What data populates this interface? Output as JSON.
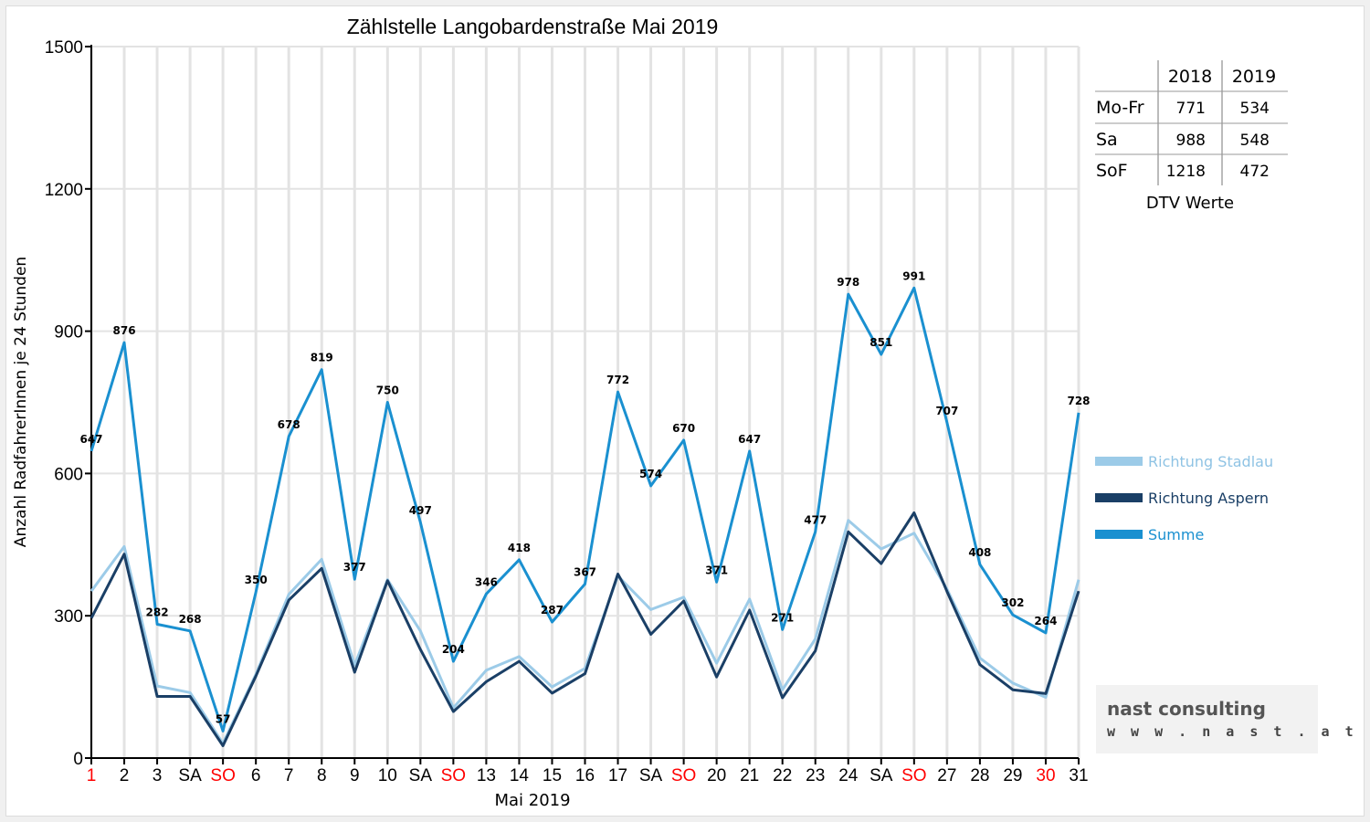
{
  "chart_data": {
    "type": "line",
    "title": "Zählstelle Langobardenstraße Mai 2019",
    "xlabel": "Mai 2019",
    "ylabel": "Anzahl RadfahrerInnen je 24 Stunden",
    "ylim": [
      0,
      1500
    ],
    "yticks": [
      0,
      300,
      600,
      900,
      1200,
      1500
    ],
    "grid": true,
    "legend_position": "right",
    "categories": [
      "1",
      "2",
      "3",
      "SA",
      "SO",
      "6",
      "7",
      "8",
      "9",
      "10",
      "SA",
      "SO",
      "13",
      "14",
      "15",
      "16",
      "17",
      "SA",
      "SO",
      "20",
      "21",
      "22",
      "23",
      "24",
      "SA",
      "SO",
      "27",
      "28",
      "29",
      "30",
      "31"
    ],
    "red_categories": [
      0,
      4,
      11,
      18,
      25,
      29
    ],
    "series": [
      {
        "name": "Richtung Stadlau",
        "color": "#9ccbe8",
        "values": [
          352,
          446,
          152,
          138,
          31,
          177,
          345,
          419,
          196,
          376,
          268,
          106,
          185,
          214,
          150,
          189,
          384,
          313,
          339,
          200,
          335,
          144,
          251,
          501,
          441,
          474,
          356,
          211,
          158,
          128,
          376
        ]
      },
      {
        "name": "Richtung Aspern",
        "color": "#1a3f66",
        "values": [
          295,
          430,
          130,
          130,
          26,
          173,
          333,
          400,
          181,
          374,
          229,
          98,
          161,
          204,
          137,
          178,
          388,
          261,
          331,
          171,
          312,
          127,
          226,
          477,
          410,
          517,
          351,
          197,
          144,
          136,
          352
        ]
      },
      {
        "name": "Summe",
        "color": "#1a90d0",
        "values": [
          647,
          876,
          282,
          268,
          57,
          350,
          678,
          819,
          377,
          750,
          497,
          204,
          346,
          418,
          287,
          367,
          772,
          574,
          670,
          371,
          647,
          271,
          477,
          978,
          851,
          991,
          707,
          408,
          302,
          264,
          728
        ]
      }
    ],
    "data_labels_series": "Summe"
  },
  "dtv_table": {
    "columns": [
      "",
      "2018",
      "2019"
    ],
    "rows": [
      [
        "Mo-Fr",
        "771",
        "534"
      ],
      [
        "Sa",
        "988",
        "548"
      ],
      [
        "SoF",
        "1218",
        "472"
      ]
    ],
    "caption": "DTV Werte"
  },
  "logo": {
    "name": "nast consulting",
    "url": "w w w . n a s t . a t"
  }
}
